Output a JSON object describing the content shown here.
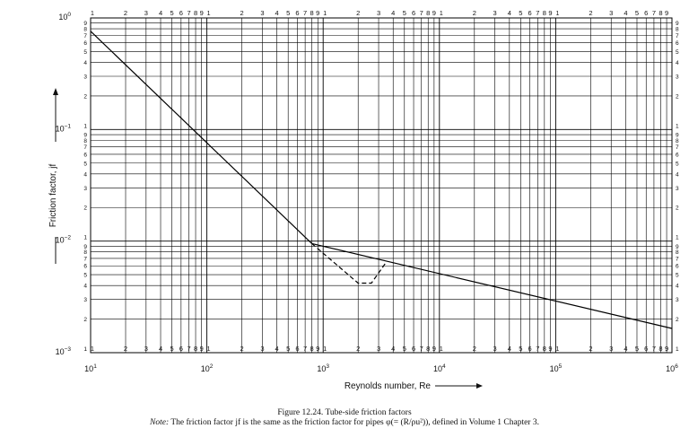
{
  "chart_data": {
    "type": "line",
    "xscale": "log",
    "yscale": "log",
    "xlim": [
      10,
      1000000
    ],
    "ylim": [
      0.001,
      1
    ],
    "grid": true,
    "xlabel": "Reynolds number, Re",
    "ylabel": "Friction factor, jf",
    "x_ticks": [
      {
        "value": 10,
        "base": "10",
        "exp": "1"
      },
      {
        "value": 100,
        "base": "10",
        "exp": "2"
      },
      {
        "value": 1000,
        "base": "10",
        "exp": "3"
      },
      {
        "value": 10000,
        "base": "10",
        "exp": "4"
      },
      {
        "value": 100000,
        "base": "10",
        "exp": "5"
      },
      {
        "value": 1000000,
        "base": "10",
        "exp": "6"
      }
    ],
    "y_ticks": [
      {
        "value": 1,
        "base": "10",
        "exp": "0"
      },
      {
        "value": 0.1,
        "base": "10",
        "exp": "−1"
      },
      {
        "value": 0.01,
        "base": "10",
        "exp": "−2"
      },
      {
        "value": 0.001,
        "base": "10",
        "exp": "−3"
      }
    ],
    "minor_tick_labels": [
      "1",
      "2",
      "3",
      "4",
      "5",
      "6",
      "7",
      "8",
      "9"
    ],
    "series": [
      {
        "style": "solid",
        "x": [
          10,
          800
        ],
        "y": [
          0.76,
          0.0095
        ]
      },
      {
        "style": "solid",
        "x": [
          800,
          1000000
        ],
        "y": [
          0.0095,
          0.00165
        ]
      },
      {
        "style": "dashed",
        "x": [
          800,
          2000,
          2600,
          3500
        ],
        "y": [
          0.0095,
          0.0042,
          0.0042,
          0.0065
        ]
      }
    ]
  },
  "caption": {
    "title": "Figure 12.24.   Tube-side friction factors",
    "note_label": "Note:",
    "note_text": " The friction factor jf is the same as the friction factor for pipes φ(= (R/ρu²)), defined in Volume 1 Chapter 3."
  }
}
